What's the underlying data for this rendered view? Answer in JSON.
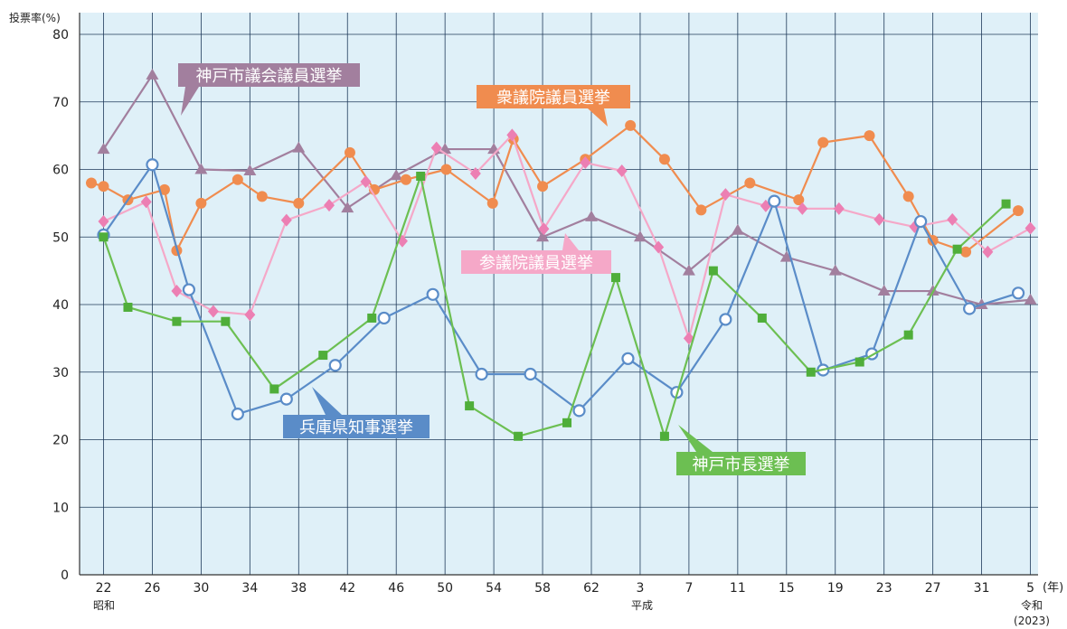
{
  "chart_data": {
    "type": "line",
    "y_unit_label": "投票率(%)",
    "x_unit_label": "(年)",
    "era_labels": [
      {
        "text": "昭和",
        "category": "22"
      },
      {
        "text": "平成",
        "category": "3"
      },
      {
        "text": "令和",
        "category": "5"
      }
    ],
    "end_year_note": "(2023)",
    "ylim": [
      0,
      80
    ],
    "yticks": [
      0,
      10,
      20,
      30,
      40,
      50,
      60,
      70,
      80
    ],
    "grid": true,
    "x_tick_labels": [
      "22",
      "26",
      "30",
      "34",
      "38",
      "42",
      "46",
      "50",
      "54",
      "58",
      "62",
      "3",
      "7",
      "11",
      "15",
      "19",
      "23",
      "27",
      "31",
      "5"
    ],
    "series": [
      {
        "name": "神戸市議会議員選挙",
        "color": "#a27f9e",
        "marker": "triangle",
        "points": [
          {
            "x": 22,
            "y": 63
          },
          {
            "x": 26,
            "y": 74
          },
          {
            "x": 30,
            "y": 60
          },
          {
            "x": 34,
            "y": 59.8
          },
          {
            "x": 38,
            "y": 63.2
          },
          {
            "x": 42,
            "y": 54.3
          },
          {
            "x": 46,
            "y": 59.1
          },
          {
            "x": 50,
            "y": 63
          },
          {
            "x": 54,
            "y": 63
          },
          {
            "x": 58,
            "y": 50
          },
          {
            "x": 62,
            "y": 53
          },
          {
            "x": 66,
            "y": 50
          },
          {
            "x": 70,
            "y": 45
          },
          {
            "x": 74,
            "y": 51
          },
          {
            "x": 78,
            "y": 47
          },
          {
            "x": 82,
            "y": 45
          },
          {
            "x": 86,
            "y": 42
          },
          {
            "x": 90,
            "y": 42
          },
          {
            "x": 94,
            "y": 40
          },
          {
            "x": 98,
            "y": 40.7
          }
        ]
      },
      {
        "name": "衆議院議員選挙",
        "color": "#f08c4f",
        "marker": "circle",
        "points": [
          {
            "x": 21,
            "y": 58
          },
          {
            "x": 22,
            "y": 57.5
          },
          {
            "x": 24,
            "y": 55.5
          },
          {
            "x": 27,
            "y": 57
          },
          {
            "x": 28,
            "y": 48
          },
          {
            "x": 30,
            "y": 55
          },
          {
            "x": 33,
            "y": 58.5
          },
          {
            "x": 35,
            "y": 56
          },
          {
            "x": 38,
            "y": 55
          },
          {
            "x": 42.2,
            "y": 62.5
          },
          {
            "x": 44.2,
            "y": 57
          },
          {
            "x": 46.8,
            "y": 58.5
          },
          {
            "x": 50.1,
            "y": 60
          },
          {
            "x": 53.9,
            "y": 55
          },
          {
            "x": 55.6,
            "y": 64.5
          },
          {
            "x": 58,
            "y": 57.5
          },
          {
            "x": 61.5,
            "y": 61.5
          },
          {
            "x": 65.2,
            "y": 66.5
          },
          {
            "x": 68,
            "y": 61.5
          },
          {
            "x": 71,
            "y": 54
          },
          {
            "x": 75,
            "y": 58
          },
          {
            "x": 79,
            "y": 55.5
          },
          {
            "x": 81,
            "y": 64
          },
          {
            "x": 84.8,
            "y": 65
          },
          {
            "x": 88,
            "y": 56
          },
          {
            "x": 90,
            "y": 49.5
          },
          {
            "x": 92.7,
            "y": 47.8
          },
          {
            "x": 97,
            "y": 53.9
          }
        ]
      },
      {
        "name": "参議院議員選挙",
        "color": "#f5a8c8",
        "marker": "diamond",
        "points": [
          {
            "x": 22,
            "y": 52.3
          },
          {
            "x": 25.5,
            "y": 55.2
          },
          {
            "x": 28,
            "y": 42
          },
          {
            "x": 31,
            "y": 39
          },
          {
            "x": 34,
            "y": 38.5
          },
          {
            "x": 37,
            "y": 52.5
          },
          {
            "x": 40.5,
            "y": 54.7
          },
          {
            "x": 43.5,
            "y": 58.2
          },
          {
            "x": 46.5,
            "y": 49.4
          },
          {
            "x": 49.3,
            "y": 63.2
          },
          {
            "x": 52.5,
            "y": 59.4
          },
          {
            "x": 55.5,
            "y": 65.1
          },
          {
            "x": 58.1,
            "y": 51.2
          },
          {
            "x": 61.5,
            "y": 61
          },
          {
            "x": 64.5,
            "y": 59.8
          },
          {
            "x": 67.5,
            "y": 48.5
          },
          {
            "x": 70,
            "y": 35
          },
          {
            "x": 73,
            "y": 56.3
          },
          {
            "x": 76.3,
            "y": 54.6
          },
          {
            "x": 79.3,
            "y": 54.2
          },
          {
            "x": 82.3,
            "y": 54.2
          },
          {
            "x": 85.6,
            "y": 52.6
          },
          {
            "x": 88.5,
            "y": 51.5
          },
          {
            "x": 91.6,
            "y": 52.6
          },
          {
            "x": 94.5,
            "y": 47.8
          },
          {
            "x": 98,
            "y": 51.3
          }
        ]
      },
      {
        "name": "兵庫県知事選挙",
        "color": "#5a8cc8",
        "marker": "open-circle",
        "points": [
          {
            "x": 22,
            "y": 50.3
          },
          {
            "x": 26,
            "y": 60.7
          },
          {
            "x": 29,
            "y": 42.2
          },
          {
            "x": 33,
            "y": 23.8
          },
          {
            "x": 37,
            "y": 26
          },
          {
            "x": 41,
            "y": 31
          },
          {
            "x": 45,
            "y": 38
          },
          {
            "x": 49,
            "y": 41.5
          },
          {
            "x": 53,
            "y": 29.7
          },
          {
            "x": 57,
            "y": 29.7
          },
          {
            "x": 61,
            "y": 24.3
          },
          {
            "x": 65,
            "y": 32
          },
          {
            "x": 69,
            "y": 27
          },
          {
            "x": 73,
            "y": 37.8
          },
          {
            "x": 77,
            "y": 55.3
          },
          {
            "x": 81,
            "y": 30.3
          },
          {
            "x": 85,
            "y": 32.7
          },
          {
            "x": 89,
            "y": 52.3
          },
          {
            "x": 93,
            "y": 39.4
          },
          {
            "x": 97,
            "y": 41.7
          }
        ]
      },
      {
        "name": "神戸市長選挙",
        "color": "#6cbf52",
        "marker": "square",
        "points": [
          {
            "x": 22,
            "y": 50
          },
          {
            "x": 24,
            "y": 39.6
          },
          {
            "x": 28,
            "y": 37.5
          },
          {
            "x": 32,
            "y": 37.5
          },
          {
            "x": 36,
            "y": 27.5
          },
          {
            "x": 40,
            "y": 32.5
          },
          {
            "x": 44,
            "y": 38
          },
          {
            "x": 48,
            "y": 59
          },
          {
            "x": 52,
            "y": 25
          },
          {
            "x": 56,
            "y": 20.5
          },
          {
            "x": 60,
            "y": 22.5
          },
          {
            "x": 64,
            "y": 44
          },
          {
            "x": 68,
            "y": 20.5
          },
          {
            "x": 72,
            "y": 45
          },
          {
            "x": 76,
            "y": 38
          },
          {
            "x": 80,
            "y": 30
          },
          {
            "x": 84,
            "y": 31.5
          },
          {
            "x": 88,
            "y": 35.5
          },
          {
            "x": 92,
            "y": 48.2
          },
          {
            "x": 96,
            "y": 54.9
          }
        ]
      }
    ],
    "annotations": [
      {
        "text": "神戸市議会議員選挙",
        "series": 0
      },
      {
        "text": "衆議院議員選挙",
        "series": 1
      },
      {
        "text": "参議院議員選挙",
        "series": 2
      },
      {
        "text": "兵庫県知事選挙",
        "series": 3
      },
      {
        "text": "神戸市長選挙",
        "series": 4
      }
    ]
  }
}
